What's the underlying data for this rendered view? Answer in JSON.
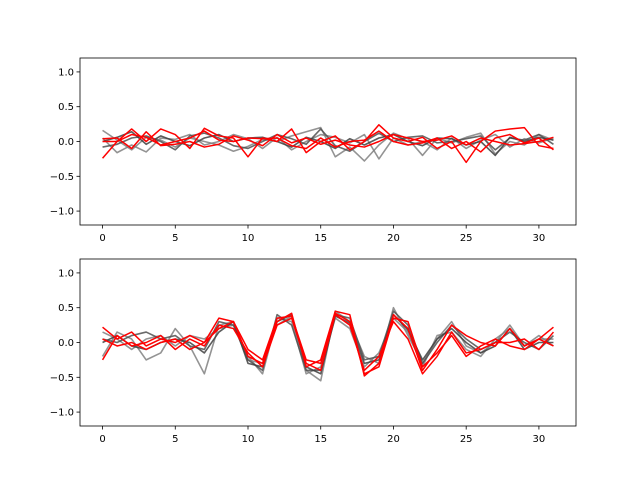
{
  "chart_data": [
    {
      "type": "line",
      "title": "",
      "xlabel": "",
      "ylabel": "",
      "xlim": [
        -1.55,
        32.55
      ],
      "ylim": [
        -1.2,
        1.2
      ],
      "xticks": [
        0,
        5,
        10,
        15,
        20,
        25,
        30
      ],
      "yticks": [
        -1.0,
        -0.5,
        0.0,
        0.5,
        1.0
      ],
      "grid": false,
      "legend": "none",
      "x": [
        0,
        1,
        2,
        3,
        4,
        5,
        6,
        7,
        8,
        9,
        10,
        11,
        12,
        13,
        14,
        15,
        16,
        17,
        18,
        19,
        20,
        21,
        22,
        23,
        24,
        25,
        26,
        27,
        28,
        29,
        30,
        31
      ],
      "series": [
        {
          "color": "#808080",
          "values": [
            0.16,
            0.02,
            -0.12,
            0.06,
            0.02,
            -0.08,
            0.05,
            0.0,
            -0.05,
            -0.14,
            -0.07,
            0.03,
            0.0,
            0.08,
            0.14,
            0.2,
            -0.22,
            -0.08,
            -0.28,
            -0.05,
            0.12,
            0.04,
            -0.2,
            0.05,
            -0.02,
            0.06,
            0.12,
            -0.18,
            0.0,
            -0.05,
            0.1,
            0.02
          ]
        },
        {
          "color": "#808080",
          "values": [
            0.05,
            -0.16,
            -0.05,
            -0.15,
            0.05,
            0.03,
            0.1,
            -0.05,
            0.0,
            0.1,
            0.04,
            -0.1,
            0.06,
            -0.12,
            0.0,
            0.1,
            0.06,
            -0.02,
            0.1,
            -0.25,
            0.05,
            -0.05,
            0.0,
            -0.12,
            0.05,
            -0.1,
            0.02,
            0.1,
            -0.08,
            0.04,
            -0.02,
            0.05
          ]
        },
        {
          "color": "#505050",
          "values": [
            -0.08,
            -0.04,
            0.05,
            0.08,
            0.0,
            -0.12,
            0.08,
            0.12,
            0.05,
            -0.06,
            -0.1,
            0.0,
            0.1,
            0.04,
            -0.04,
            0.18,
            -0.06,
            -0.14,
            0.0,
            0.12,
            0.0,
            0.06,
            0.08,
            -0.02,
            0.0,
            0.04,
            0.08,
            -0.12,
            0.05,
            0.02,
            0.1,
            -0.04
          ]
        },
        {
          "color": "#404040",
          "values": [
            0.0,
            0.06,
            0.14,
            -0.04,
            0.08,
            0.0,
            -0.06,
            0.05,
            0.1,
            0.0,
            0.05,
            0.06,
            0.0,
            -0.08,
            0.06,
            0.0,
            -0.1,
            0.04,
            -0.05,
            0.05,
            0.1,
            0.0,
            -0.06,
            0.05,
            0.04,
            -0.05,
            0.0,
            -0.2,
            0.06,
            0.0,
            0.06,
            0.02
          ]
        },
        {
          "color": "#ff0000",
          "values": [
            -0.24,
            0.0,
            0.18,
            0.0,
            0.18,
            0.1,
            -0.1,
            0.19,
            0.08,
            0.05,
            -0.22,
            0.05,
            0.0,
            0.18,
            -0.16,
            0.0,
            0.08,
            -0.12,
            0.0,
            0.24,
            0.05,
            0.0,
            0.06,
            -0.1,
            0.0,
            -0.3,
            0.0,
            0.15,
            0.18,
            0.2,
            -0.06,
            -0.1
          ]
        },
        {
          "color": "#ff0000",
          "values": [
            0.0,
            0.0,
            0.1,
            0.06,
            -0.05,
            0.0,
            0.05,
            0.15,
            0.02,
            0.0,
            0.05,
            0.04,
            0.05,
            -0.06,
            -0.1,
            0.05,
            -0.08,
            0.0,
            0.02,
            0.15,
            0.0,
            -0.05,
            -0.02,
            0.05,
            -0.1,
            0.0,
            -0.15,
            0.05,
            0.1,
            -0.02,
            0.05,
            -0.12
          ]
        },
        {
          "color": "#ff0000",
          "values": [
            0.04,
            0.05,
            -0.1,
            0.14,
            -0.06,
            -0.04,
            0.0,
            -0.08,
            -0.04,
            0.08,
            0.02,
            -0.06,
            0.1,
            -0.02,
            0.05,
            -0.04,
            0.02,
            -0.05,
            -0.08,
            0.0,
            0.1,
            0.05,
            0.0,
            0.02,
            0.08,
            -0.05,
            0.05,
            0.0,
            -0.05,
            -0.03,
            0.0,
            0.06
          ]
        }
      ]
    },
    {
      "type": "line",
      "title": "",
      "xlabel": "",
      "ylabel": "",
      "xlim": [
        -1.55,
        32.55
      ],
      "ylim": [
        -1.2,
        1.2
      ],
      "xticks": [
        0,
        5,
        10,
        15,
        20,
        25,
        30
      ],
      "yticks": [
        -1.0,
        -0.5,
        0.0,
        0.5,
        1.0
      ],
      "grid": false,
      "legend": "none",
      "x": [
        0,
        1,
        2,
        3,
        4,
        5,
        6,
        7,
        8,
        9,
        10,
        11,
        12,
        13,
        14,
        15,
        16,
        17,
        18,
        19,
        20,
        21,
        22,
        23,
        24,
        25,
        26,
        27,
        28,
        29,
        30,
        31
      ],
      "series": [
        {
          "color": "#808080",
          "values": [
            -0.2,
            0.15,
            0.05,
            -0.25,
            -0.15,
            0.2,
            -0.05,
            -0.45,
            0.25,
            0.3,
            -0.25,
            -0.3,
            0.25,
            0.38,
            -0.4,
            -0.55,
            0.45,
            0.3,
            -0.2,
            -0.3,
            0.5,
            0.1,
            -0.3,
            0.05,
            0.3,
            -0.05,
            -0.15,
            0.0,
            0.25,
            -0.05,
            0.05,
            0.05
          ]
        },
        {
          "color": "#808080",
          "values": [
            0.15,
            0.05,
            -0.1,
            0.05,
            0.1,
            -0.05,
            0.1,
            0.05,
            0.2,
            0.25,
            -0.2,
            -0.45,
            0.35,
            0.3,
            -0.45,
            -0.35,
            0.35,
            0.2,
            -0.35,
            -0.15,
            0.35,
            0.15,
            -0.35,
            0.1,
            0.15,
            -0.1,
            -0.2,
            0.05,
            0.2,
            -0.05,
            0.1,
            -0.05
          ]
        },
        {
          "color": "#505050",
          "values": [
            0.05,
            0.0,
            0.1,
            0.15,
            0.05,
            0.1,
            -0.05,
            -0.1,
            0.3,
            0.25,
            -0.25,
            -0.4,
            0.4,
            0.25,
            -0.4,
            -0.4,
            0.4,
            0.35,
            -0.25,
            -0.2,
            0.45,
            0.25,
            -0.3,
            0.0,
            0.25,
            0.05,
            -0.1,
            0.0,
            0.15,
            0.0,
            -0.1,
            0.1
          ]
        },
        {
          "color": "#404040",
          "values": [
            0.0,
            0.1,
            -0.05,
            -0.1,
            0.0,
            0.05,
            0.0,
            -0.15,
            0.15,
            0.3,
            -0.3,
            -0.35,
            0.3,
            0.4,
            -0.35,
            -0.45,
            0.38,
            0.28,
            -0.3,
            -0.25,
            0.4,
            0.18,
            -0.25,
            0.05,
            0.2,
            0.0,
            -0.15,
            -0.05,
            0.2,
            -0.1,
            0.0,
            0.0
          ]
        },
        {
          "color": "#ff0000",
          "values": [
            0.22,
            0.05,
            0.15,
            -0.05,
            0.05,
            0.0,
            0.1,
            0.0,
            0.35,
            0.3,
            -0.2,
            -0.3,
            0.3,
            0.42,
            -0.35,
            -0.25,
            0.45,
            0.4,
            -0.48,
            -0.3,
            0.4,
            0.2,
            -0.4,
            -0.1,
            0.25,
            0.1,
            0.0,
            -0.05,
            0.2,
            -0.05,
            0.05,
            0.22
          ]
        },
        {
          "color": "#ff0000",
          "values": [
            -0.25,
            0.1,
            -0.05,
            0.0,
            0.1,
            -0.1,
            0.05,
            -0.05,
            0.25,
            0.2,
            -0.15,
            -0.35,
            0.25,
            0.35,
            -0.3,
            -0.4,
            0.4,
            0.25,
            -0.4,
            -0.2,
            0.3,
            0.05,
            -0.45,
            -0.2,
            0.15,
            -0.15,
            -0.1,
            0.0,
            0.0,
            0.05,
            -0.1,
            0.15
          ]
        },
        {
          "color": "#ff0000",
          "values": [
            0.05,
            -0.05,
            0.0,
            -0.1,
            0.0,
            0.05,
            -0.1,
            0.0,
            0.2,
            0.3,
            -0.1,
            -0.25,
            0.35,
            0.38,
            -0.25,
            -0.3,
            0.42,
            0.3,
            -0.45,
            -0.35,
            0.35,
            0.3,
            -0.35,
            -0.15,
            0.1,
            -0.2,
            -0.05,
            0.05,
            -0.05,
            -0.1,
            0.05,
            -0.05
          ]
        }
      ]
    }
  ]
}
